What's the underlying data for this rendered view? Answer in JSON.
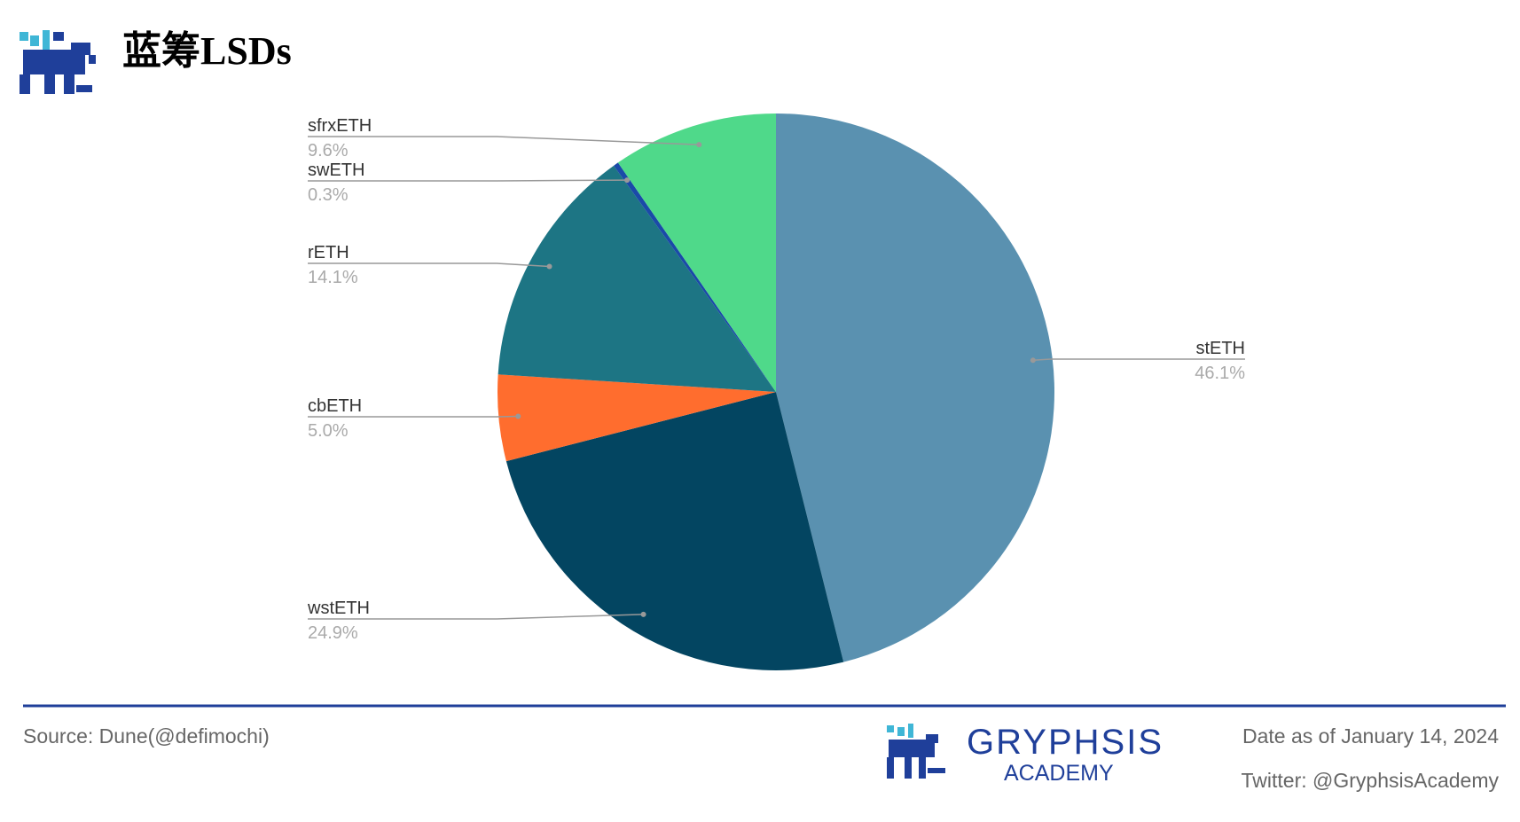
{
  "header": {
    "title": "蓝筹LSDs"
  },
  "chart_data": {
    "type": "pie",
    "categories": [
      "stETH",
      "wstETH",
      "cbETH",
      "rETH",
      "swETH",
      "sfrxETH"
    ],
    "values": [
      46.1,
      24.9,
      5.0,
      14.1,
      0.3,
      9.6
    ],
    "value_labels": [
      "46.1%",
      "24.9%",
      "5.0%",
      "14.1%",
      "0.3%",
      "9.6%"
    ],
    "colors": [
      "#5a91b0",
      "#034561",
      "#ff6d2e",
      "#1d7584",
      "#1a4aa8",
      "#4fd98a"
    ]
  },
  "footer": {
    "source": "Source: Dune(@defimochi)",
    "brand": "GRYPHSIS",
    "brand_sub": "ACADEMY",
    "date": "Date as of January 14, 2024",
    "twitter": "Twitter: @GryphsisAcademy"
  }
}
